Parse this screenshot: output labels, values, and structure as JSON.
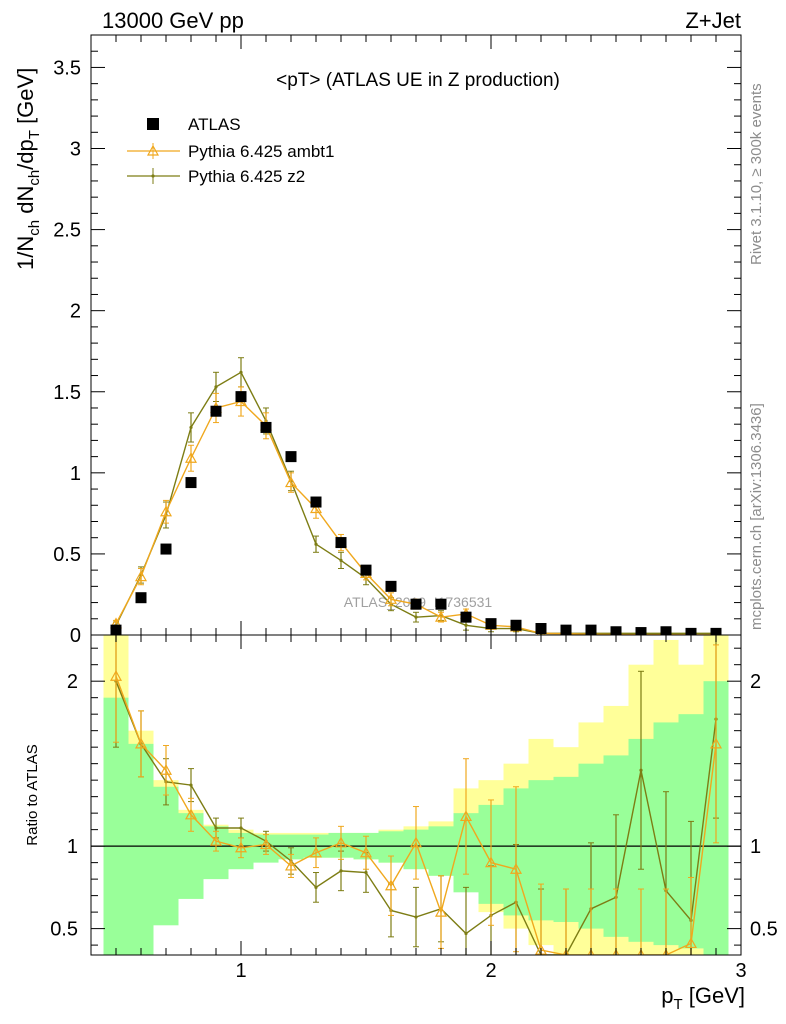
{
  "header": {
    "left": "13000 GeV pp",
    "right": "Z+Jet"
  },
  "side_text": {
    "rivet": "Rivet 3.1.10, ≥ 300k events",
    "mcplots": "mcplots.cern.ch [arXiv:1306.3436]"
  },
  "chart_data": [
    {
      "type": "scatter",
      "panel": "main",
      "title": "<pT> (ATLAS UE in Z production)",
      "watermark": "ATLAS_2019_I1736531",
      "ylabel": "1/N_ch dN_ch/dp_T [GeV]",
      "xlabel": "p_T [GeV]",
      "xlim": [
        0.4,
        3.0
      ],
      "ylim": [
        0,
        3.7
      ],
      "x_ticks": [
        "1",
        "2",
        "3"
      ],
      "y_ticks": [
        "0",
        "0.5",
        "1",
        "1.5",
        "2",
        "2.5",
        "3",
        "3.5"
      ],
      "legend_position": "top-left",
      "x": [
        0.5,
        0.6,
        0.7,
        0.8,
        0.9,
        1.0,
        1.1,
        1.2,
        1.3,
        1.4,
        1.5,
        1.6,
        1.7,
        1.8,
        1.9,
        2.0,
        2.1,
        2.2,
        2.3,
        2.4,
        2.5,
        2.6,
        2.7,
        2.8,
        2.9
      ],
      "series": [
        {
          "name": "ATLAS",
          "style": "square-marker",
          "color": "#000000",
          "values": [
            0.03,
            0.23,
            0.53,
            0.94,
            1.38,
            1.47,
            1.28,
            1.1,
            0.82,
            0.57,
            0.4,
            0.3,
            0.19,
            0.19,
            0.11,
            0.07,
            0.06,
            0.04,
            0.03,
            0.03,
            0.02,
            0.015,
            0.02,
            0.01,
            0.01
          ]
        },
        {
          "name": "Pythia 6.425 ambt1",
          "style": "line-triangle",
          "color": "#f0a81e",
          "values": [
            0.07,
            0.36,
            0.76,
            1.09,
            1.4,
            1.44,
            1.29,
            0.94,
            0.78,
            0.57,
            0.38,
            0.22,
            0.19,
            0.11,
            0.13,
            0.06,
            0.05,
            0.01,
            0.008,
            0.004,
            0.003,
            0.002,
            0.002,
            0.001,
            0.001
          ],
          "errors": [
            0.02,
            0.05,
            0.07,
            0.08,
            0.09,
            0.09,
            0.08,
            0.06,
            0.06,
            0.05,
            0.04,
            0.04,
            0.03,
            0.03,
            0.03,
            0.02,
            0.02,
            0.01,
            0.01,
            0.01,
            0.01,
            0.01,
            0.01,
            0.01,
            0.01
          ]
        },
        {
          "name": "Pythia 6.425 z2",
          "style": "line-dot",
          "color": "#7d7d14",
          "values": [
            0.06,
            0.37,
            0.74,
            1.28,
            1.53,
            1.62,
            1.32,
            0.95,
            0.56,
            0.46,
            0.35,
            0.19,
            0.11,
            0.12,
            0.06,
            0.04,
            0.04,
            0.01,
            0.01,
            0.01,
            0.01,
            0.01,
            0.01,
            0.01,
            0.01
          ],
          "errors": [
            0.02,
            0.05,
            0.08,
            0.09,
            0.09,
            0.09,
            0.08,
            0.06,
            0.05,
            0.05,
            0.04,
            0.04,
            0.03,
            0.03,
            0.03,
            0.02,
            0.02,
            0.01,
            0.01,
            0.01,
            0.01,
            0.01,
            0.01,
            0.01,
            0.01
          ]
        }
      ]
    },
    {
      "type": "line",
      "panel": "ratio",
      "ylabel": "Ratio to ATLAS",
      "xlabel": "p_T [GeV]",
      "xlim": [
        0.4,
        3.0
      ],
      "ylim": [
        0.34,
        2.28
      ],
      "y_ticks": [
        "0.5",
        "1",
        "2"
      ],
      "x": [
        0.5,
        0.6,
        0.7,
        0.8,
        0.9,
        1.0,
        1.1,
        1.2,
        1.3,
        1.4,
        1.5,
        1.6,
        1.7,
        1.8,
        1.9,
        2.0,
        2.1,
        2.2,
        2.3,
        2.4,
        2.5,
        2.6,
        2.7,
        2.8,
        2.9
      ],
      "bands": {
        "yellow_color": "#ffff99",
        "green_color": "#99ff99",
        "bin_edges": [
          0.45,
          0.55,
          0.65,
          0.75,
          0.85,
          0.95,
          1.05,
          1.15,
          1.25,
          1.35,
          1.45,
          1.55,
          1.65,
          1.75,
          1.85,
          1.95,
          2.05,
          2.15,
          2.25,
          2.35,
          2.45,
          2.55,
          2.65,
          2.75,
          2.85,
          2.95
        ],
        "yellow_low": [
          0.34,
          0.65,
          0.75,
          0.82,
          0.88,
          0.9,
          0.92,
          0.92,
          0.93,
          0.93,
          0.92,
          0.9,
          0.88,
          0.86,
          0.74,
          0.6,
          0.5,
          0.4,
          0.34,
          0.34,
          0.34,
          0.34,
          0.34,
          0.34,
          0.34
        ],
        "yellow_high": [
          2.28,
          1.7,
          1.4,
          1.22,
          1.13,
          1.1,
          1.08,
          1.08,
          1.08,
          1.08,
          1.08,
          1.1,
          1.12,
          1.15,
          1.35,
          1.4,
          1.5,
          1.65,
          1.6,
          1.75,
          1.85,
          2.1,
          2.25,
          2.1,
          2.28
        ],
        "green_low": [
          0.34,
          0.34,
          0.52,
          0.68,
          0.8,
          0.86,
          0.9,
          0.92,
          0.93,
          0.93,
          0.92,
          0.9,
          0.86,
          0.82,
          0.72,
          0.65,
          0.58,
          0.55,
          0.54,
          0.5,
          0.45,
          0.42,
          0.4,
          0.38,
          0.34
        ],
        "green_high": [
          1.9,
          1.62,
          1.36,
          1.2,
          1.12,
          1.08,
          1.07,
          1.07,
          1.07,
          1.08,
          1.08,
          1.09,
          1.1,
          1.12,
          1.2,
          1.25,
          1.35,
          1.4,
          1.42,
          1.5,
          1.55,
          1.65,
          1.75,
          1.8,
          2.0
        ]
      },
      "series": [
        {
          "name": "Pythia 6.425 ambt1",
          "color": "#f0a81e",
          "values": [
            2.03,
            1.62,
            1.46,
            1.19,
            1.03,
            0.99,
            1.01,
            0.88,
            0.96,
            1.02,
            0.96,
            0.76,
            1.02,
            0.6,
            1.18,
            0.9,
            0.86,
            0.37,
            0.34,
            0.34,
            0.34,
            0.34,
            0.34,
            0.41,
            1.62
          ],
          "errors": [
            0.4,
            0.2,
            0.15,
            0.1,
            0.06,
            0.06,
            0.06,
            0.07,
            0.09,
            0.1,
            0.1,
            0.18,
            0.22,
            0.22,
            0.35,
            0.38,
            0.5,
            0.4,
            0.4,
            0.4,
            0.4,
            0.4,
            0.4,
            0.4,
            0.6
          ]
        },
        {
          "name": "Pythia 6.425 z2",
          "color": "#7d7d14",
          "values": [
            2.0,
            1.62,
            1.39,
            1.37,
            1.11,
            1.11,
            1.03,
            0.91,
            0.75,
            0.85,
            0.84,
            0.61,
            0.57,
            0.62,
            0.47,
            0.58,
            0.66,
            0.34,
            0.34,
            0.62,
            0.69,
            1.46,
            0.73,
            0.55,
            1.77
          ],
          "errors": [
            0.4,
            0.2,
            0.14,
            0.1,
            0.06,
            0.06,
            0.06,
            0.08,
            0.09,
            0.12,
            0.12,
            0.16,
            0.18,
            0.2,
            0.28,
            0.3,
            0.35,
            0.4,
            0.4,
            0.4,
            0.5,
            0.6,
            0.6,
            0.6,
            0.6
          ]
        }
      ]
    }
  ]
}
